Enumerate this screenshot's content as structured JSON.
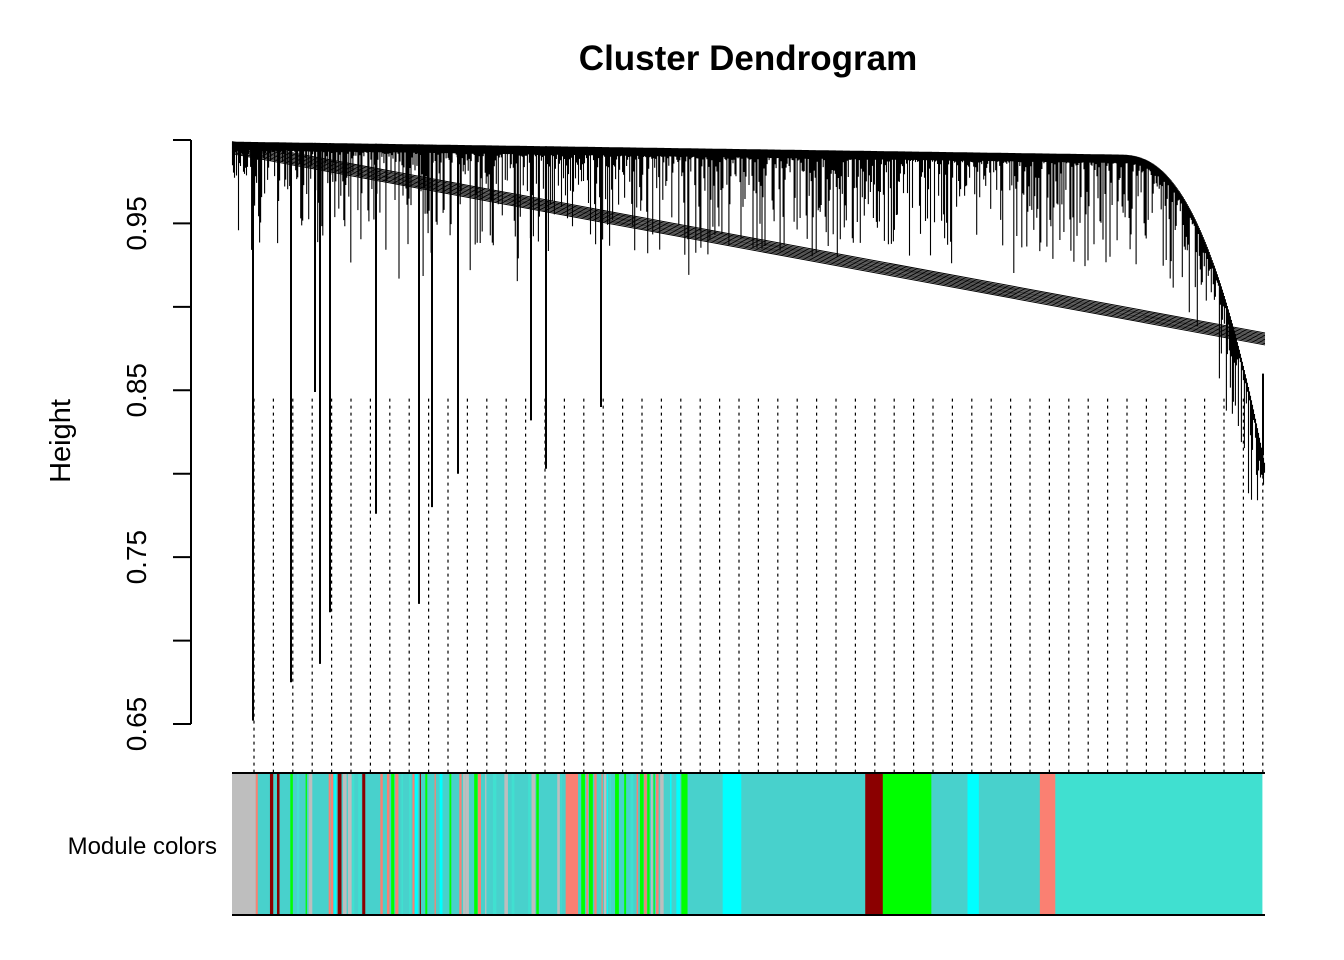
{
  "chart_data": {
    "type": "dendrogram",
    "title": "Cluster Dendrogram",
    "ylabel": "Height",
    "ylim": [
      0.65,
      1.0
    ],
    "yticks": [
      "0.65",
      "0.75",
      "0.85",
      "0.95"
    ],
    "ytick_values": [
      0.65,
      0.7,
      0.75,
      0.8,
      0.85,
      0.9,
      0.95,
      1.0
    ],
    "grid": false,
    "merge_profile": {
      "top_height_left": 0.999,
      "top_height_right": 0.99,
      "tail_end_height": 0.805,
      "deepest_leaves": [
        0.652,
        0.675,
        0.686,
        0.717,
        0.722,
        0.776,
        0.78,
        0.8,
        0.803,
        0.832,
        0.84,
        0.849,
        0.86
      ]
    },
    "module_colors_label": "Module colors",
    "module_colors": [
      {
        "color": "grey",
        "hex": "#bebebe",
        "share": 0.023
      },
      {
        "color": "mixed",
        "hex": "#48d1cc",
        "share": 0.3
      },
      {
        "color": "salmon",
        "hex": "#fa8072",
        "share": 0.012
      },
      {
        "color": "mixed",
        "hex": "#48d1cc",
        "share": 0.1
      },
      {
        "color": "green",
        "hex": "#00ff00",
        "share": 0.006
      },
      {
        "color": "turquoise",
        "hex": "#48d1cc",
        "share": 0.034
      },
      {
        "color": "cyan",
        "hex": "#00ffff",
        "share": 0.018
      },
      {
        "color": "turquoise",
        "hex": "#48d1cc",
        "share": 0.12
      },
      {
        "color": "darkred",
        "hex": "#8b0000",
        "share": 0.017
      },
      {
        "color": "green",
        "hex": "#00ff00",
        "share": 0.047
      },
      {
        "color": "turquoise",
        "hex": "#48d1cc",
        "share": 0.035
      },
      {
        "color": "cyan",
        "hex": "#00ffff",
        "share": 0.011
      },
      {
        "color": "turquoise",
        "hex": "#48d1cc",
        "share": 0.059
      },
      {
        "color": "salmon",
        "hex": "#fa8072",
        "share": 0.015
      },
      {
        "color": "turquoise",
        "hex": "#40e0d0",
        "share": 0.2
      }
    ]
  }
}
